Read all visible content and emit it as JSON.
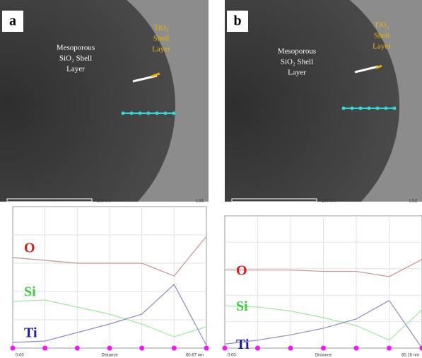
{
  "panels": [
    {
      "label": "a",
      "scale_bar": "100 nm",
      "code": "LG1",
      "annotations": {
        "silica": [
          "Mesoporous",
          "SiO₂ Shell",
          "Layer"
        ],
        "titania": [
          "TiO₂",
          "Shell",
          "Layer"
        ]
      },
      "chart": {
        "type": "line",
        "ylim": [
          0,
          100
        ],
        "x_labels": [
          "0.00",
          "Distance",
          "60.67 nm"
        ],
        "series": [
          {
            "name": "O",
            "color": "#e01818",
            "line": "#c89090",
            "values": [
              64,
              62,
              60,
              60,
              60,
              51,
              79
            ]
          },
          {
            "name": "Si",
            "color": "#3ccc3c",
            "line": "#a0e8a0",
            "values": [
              33,
              34,
              29,
              24,
              17,
              8,
              15
            ]
          },
          {
            "name": "Ti",
            "color": "#1a1aa8",
            "line": "#8c8cc8",
            "values": [
              4,
              5,
              11,
              17,
              24,
              45,
              2
            ]
          }
        ]
      }
    },
    {
      "label": "b",
      "scale_bar": "100 nm",
      "code": "LG2",
      "annotations": {
        "silica": [
          "Mesoporous",
          "SiO₂ Shell",
          "Layer"
        ],
        "titania": [
          "TiO₂",
          "Shell",
          "Layer"
        ]
      },
      "chart": {
        "type": "line",
        "ylim": [
          0,
          100
        ],
        "x_labels": [
          "0.00",
          "Distance",
          "60.16 nm"
        ],
        "series": [
          {
            "name": "O",
            "color": "#e01818",
            "line": "#c89090",
            "values": [
              59,
              59,
              59,
              58,
              58,
              54,
              67
            ]
          },
          {
            "name": "Si",
            "color": "#3ccc3c",
            "line": "#a0e8a0",
            "values": [
              32,
              31,
              28,
              23,
              17,
              6,
              29
            ]
          },
          {
            "name": "Ti",
            "color": "#1a1aa8",
            "line": "#8c8cc8",
            "values": [
              3,
              6,
              10,
              15,
              22,
              36,
              0
            ]
          }
        ]
      }
    }
  ]
}
